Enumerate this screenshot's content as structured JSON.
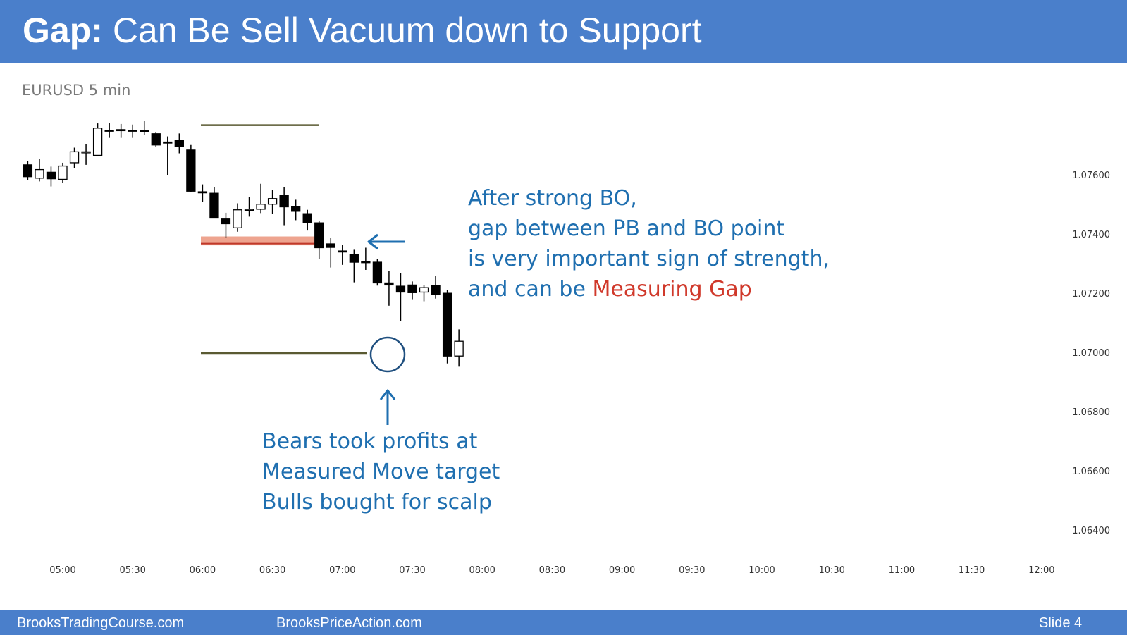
{
  "slide": {
    "title_bold": "Gap:",
    "title_rest": "Can Be Sell Vacuum down to Support",
    "symbol_label": "EURUSD 5 min",
    "annotation_right": {
      "lines": [
        "After strong BO,",
        "gap between PB and BO point",
        "is very important sign of strength,"
      ],
      "last_prefix": "and can be ",
      "last_highlight": "Measuring Gap"
    },
    "annotation_bottom": {
      "lines": [
        "Bears took profits at",
        "Measured Move target",
        "Bulls bought for scalp"
      ]
    },
    "footer": {
      "left": "BrooksTradingCourse.com",
      "center": "BrooksPriceAction.com",
      "right": "Slide  4"
    }
  },
  "colors": {
    "header_bg": "#4a7fcb",
    "annotation_text": "#1f6fb0",
    "highlight_text": "#d0392b",
    "level_line": "#5a5a32",
    "gap_zone": "#e8866a",
    "bear_candle": "#000000",
    "bull_candle": "#ffffff",
    "axis_text": "#333333"
  },
  "chart_data": {
    "type": "candlestick",
    "title": "",
    "xlabel": "",
    "ylabel": "",
    "ylim": [
      1.0632,
      1.0804
    ],
    "y_ticks": [
      "1.07600",
      "1.07400",
      "1.07200",
      "1.07000",
      "1.06800",
      "1.06600",
      "1.06400"
    ],
    "x_ticks": [
      "05:00",
      "05:30",
      "06:00",
      "06:30",
      "07:00",
      "07:30",
      "08:00",
      "08:30",
      "09:00",
      "09:30",
      "10:00",
      "10:30",
      "11:00",
      "11:30",
      "12:00"
    ],
    "candles": [
      {
        "time": "04:45",
        "open": 1.07636,
        "high": 1.07649,
        "low": 1.07584,
        "close": 1.07596
      },
      {
        "time": "04:50",
        "open": 1.07591,
        "high": 1.07656,
        "low": 1.0758,
        "close": 1.0762
      },
      {
        "time": "04:55",
        "open": 1.07611,
        "high": 1.0763,
        "low": 1.07563,
        "close": 1.07589
      },
      {
        "time": "05:00",
        "open": 1.07587,
        "high": 1.07643,
        "low": 1.07575,
        "close": 1.07632
      },
      {
        "time": "05:05",
        "open": 1.07643,
        "high": 1.07694,
        "low": 1.07625,
        "close": 1.0768
      },
      {
        "time": "05:10",
        "open": 1.07678,
        "high": 1.07707,
        "low": 1.07636,
        "close": 1.0768
      },
      {
        "time": "05:15",
        "open": 1.07668,
        "high": 1.07776,
        "low": 1.07665,
        "close": 1.0776
      },
      {
        "time": "05:20",
        "open": 1.07753,
        "high": 1.07777,
        "low": 1.07727,
        "close": 1.07753
      },
      {
        "time": "05:25",
        "open": 1.07753,
        "high": 1.07774,
        "low": 1.07727,
        "close": 1.07755
      },
      {
        "time": "05:30",
        "open": 1.07753,
        "high": 1.07772,
        "low": 1.07727,
        "close": 1.07753
      },
      {
        "time": "05:35",
        "open": 1.07751,
        "high": 1.07784,
        "low": 1.07736,
        "close": 1.07751
      },
      {
        "time": "05:40",
        "open": 1.07741,
        "high": 1.07746,
        "low": 1.07696,
        "close": 1.07703
      },
      {
        "time": "05:45",
        "open": 1.07713,
        "high": 1.07732,
        "low": 1.07602,
        "close": 1.07713
      },
      {
        "time": "05:50",
        "open": 1.07718,
        "high": 1.07742,
        "low": 1.07675,
        "close": 1.07698
      },
      {
        "time": "05:55",
        "open": 1.07686,
        "high": 1.07703,
        "low": 1.07543,
        "close": 1.07547
      },
      {
        "time": "06:00",
        "open": 1.07545,
        "high": 1.0757,
        "low": 1.0751,
        "close": 1.07545
      },
      {
        "time": "06:05",
        "open": 1.0754,
        "high": 1.0756,
        "low": 1.0746,
        "close": 1.07456
      },
      {
        "time": "06:10",
        "open": 1.07453,
        "high": 1.07474,
        "low": 1.0739,
        "close": 1.07437
      },
      {
        "time": "06:15",
        "open": 1.07423,
        "high": 1.07506,
        "low": 1.0741,
        "close": 1.07484
      },
      {
        "time": "06:20",
        "open": 1.07484,
        "high": 1.07527,
        "low": 1.07461,
        "close": 1.07486
      },
      {
        "time": "06:25",
        "open": 1.07486,
        "high": 1.07572,
        "low": 1.07473,
        "close": 1.07503
      },
      {
        "time": "06:30",
        "open": 1.07503,
        "high": 1.07551,
        "low": 1.0747,
        "close": 1.07522
      },
      {
        "time": "06:35",
        "open": 1.07532,
        "high": 1.0756,
        "low": 1.07432,
        "close": 1.07494
      },
      {
        "time": "06:40",
        "open": 1.07494,
        "high": 1.07518,
        "low": 1.07449,
        "close": 1.07479
      },
      {
        "time": "06:45",
        "open": 1.07471,
        "high": 1.07484,
        "low": 1.07414,
        "close": 1.07442
      },
      {
        "time": "06:50",
        "open": 1.0744,
        "high": 1.07447,
        "low": 1.07318,
        "close": 1.07356
      },
      {
        "time": "06:55",
        "open": 1.07369,
        "high": 1.07389,
        "low": 1.07289,
        "close": 1.07357
      },
      {
        "time": "07:00",
        "open": 1.07345,
        "high": 1.07366,
        "low": 1.07298,
        "close": 1.07345
      },
      {
        "time": "07:05",
        "open": 1.07333,
        "high": 1.07349,
        "low": 1.07239,
        "close": 1.07307
      },
      {
        "time": "07:10",
        "open": 1.07309,
        "high": 1.07356,
        "low": 1.07281,
        "close": 1.07309
      },
      {
        "time": "07:15",
        "open": 1.07307,
        "high": 1.07318,
        "low": 1.07228,
        "close": 1.07237
      },
      {
        "time": "07:20",
        "open": 1.07237,
        "high": 1.07277,
        "low": 1.0716,
        "close": 1.0723
      },
      {
        "time": "07:25",
        "open": 1.07226,
        "high": 1.0727,
        "low": 1.07108,
        "close": 1.07206
      },
      {
        "time": "07:30",
        "open": 1.0723,
        "high": 1.07242,
        "low": 1.07182,
        "close": 1.07204
      },
      {
        "time": "07:35",
        "open": 1.07206,
        "high": 1.0723,
        "low": 1.07175,
        "close": 1.07221
      },
      {
        "time": "07:40",
        "open": 1.07228,
        "high": 1.07261,
        "low": 1.07184,
        "close": 1.07197
      },
      {
        "time": "07:45",
        "open": 1.07202,
        "high": 1.07214,
        "low": 1.06965,
        "close": 1.0699
      },
      {
        "time": "07:50",
        "open": 1.0699,
        "high": 1.0708,
        "low": 1.06954,
        "close": 1.0704
      }
    ],
    "levels": [
      {
        "value": 1.0777
      },
      {
        "value": 1.07
      }
    ],
    "gap_zone": {
      "low": 1.07364,
      "high": 1.07394
    }
  }
}
